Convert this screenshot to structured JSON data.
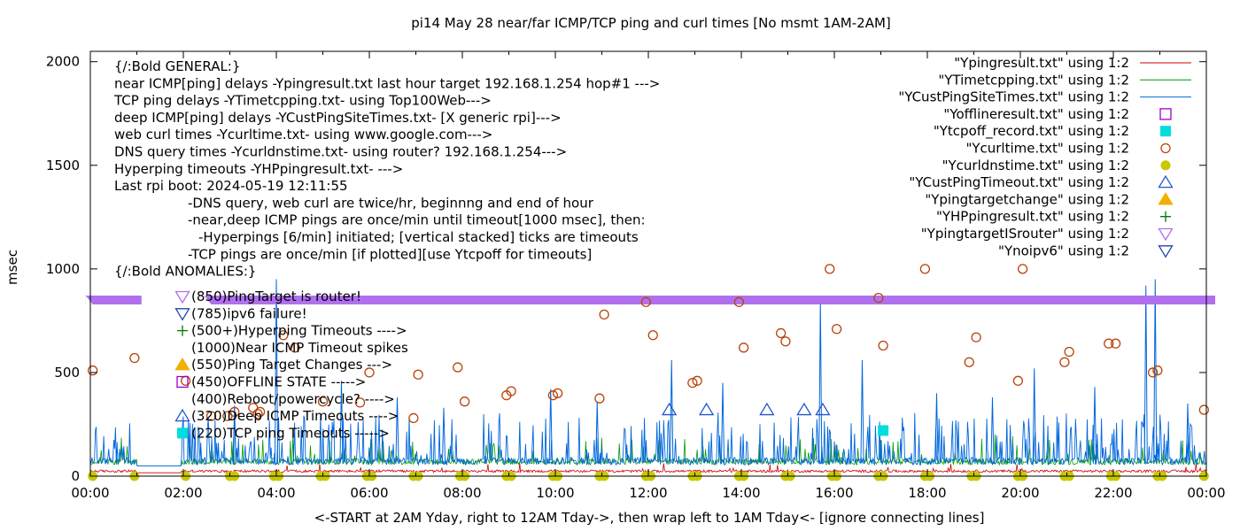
{
  "chart_data": {
    "type": "line",
    "title": "pi14 May 28  near/far ICMP/TCP ping and curl times [No msmt 1AM-2AM]",
    "ylabel": "msec",
    "xlabel": "<-START at 2AM Yday, right to 12AM Tday->, then wrap left to 1AM Tday<- [ignore connecting lines]",
    "xlim": [
      0,
      24
    ],
    "ylim": [
      0,
      2050
    ],
    "x_ticks": [
      "00:00",
      "02:00",
      "04:00",
      "06:00",
      "08:00",
      "10:00",
      "12:00",
      "14:00",
      "16:00",
      "18:00",
      "20:00",
      "22:00",
      "00:00"
    ],
    "y_ticks": [
      0,
      500,
      1000,
      1500,
      2000
    ],
    "grid": false,
    "legend_placement": "top-right",
    "annotations_general": [
      "{/:Bold GENERAL:}",
      "near ICMP[ping] delays -Ypingresult.txt last hour target 192.168.1.254 hop#1 --->",
      "TCP ping delays -YTimetcpping.txt- using Top100Web--->",
      "deep ICMP[ping] delays -YCustPingSiteTimes.txt- [X generic rpi]--->",
      "web curl times -Ycurltime.txt- using www.google.com--->",
      "DNS query times -Ycurldnstime.txt- using router? 192.168.1.254--->",
      "Hyperping timeouts -YHPpingresult.txt- --->",
      "Last rpi boot: 2024-05-19 12:11:55",
      "-DNS query, web curl are twice/hr, beginnng and end of hour",
      "-near,deep ICMP pings are once/min until timeout[1000 msec], then:",
      "-Hyperpings [6/min] initiated; [vertical stacked] ticks are timeouts",
      "-TCP pings are once/min [if plotted][use Ytcpoff for timeouts]",
      "{/:Bold ANOMALIES:}"
    ],
    "annotations_anomalies": [
      {
        "marker": "tri-down-violet",
        "text": "(850)PingTarget is router!"
      },
      {
        "marker": "tri-down-blue",
        "text": "(785)ipv6 failure!"
      },
      {
        "marker": "plus-green",
        "text": "(500+)Hyperping Timeouts ---->"
      },
      {
        "marker": "none",
        "text": "(1000)Near ICMP Timeout spikes"
      },
      {
        "marker": "tri-up-orange",
        "text": "(550)Ping Target Changes --->"
      },
      {
        "marker": "square-open-purple",
        "text": "(450)OFFLINE STATE ----->"
      },
      {
        "marker": "none",
        "text": "(400)Reboot/powercycle? ---->"
      },
      {
        "marker": "tri-up-open-blue",
        "text": "(320)Deep ICMP Timeouts ---->"
      },
      {
        "marker": "square-cyan",
        "text": "(220)TCP ping Timeouts ----->"
      }
    ],
    "legend": [
      {
        "label": "\"Ypingresult.txt\" using 1:2",
        "marker": "line",
        "color": "#cc0000"
      },
      {
        "label": "\"YTimetcpping.txt\" using 1:2",
        "marker": "line",
        "color": "#009900"
      },
      {
        "label": "\"YCustPingSiteTimes.txt\" using 1:2",
        "marker": "line",
        "color": "#0066dd"
      },
      {
        "label": "\"Yofflineresult.txt\" using 1:2",
        "marker": "square-open",
        "color": "#9900cc"
      },
      {
        "label": "\"Ytcpoff_record.txt\" using 1:2",
        "marker": "square-filled",
        "color": "#00dddd"
      },
      {
        "label": "\"Ycurltime.txt\" using 1:2",
        "marker": "circle-open",
        "color": "#b8430a"
      },
      {
        "label": "\"Ycurldnstime.txt\" using 1:2",
        "marker": "circle-filled",
        "color": "#c8c800"
      },
      {
        "label": "\"YCustPingTimeout.txt\" using 1:2",
        "marker": "tri-up-open",
        "color": "#2255cc"
      },
      {
        "label": "\"Ypingtargetchange\" using 1:2",
        "marker": "tri-up-filled",
        "color": "#f0b000"
      },
      {
        "label": "\"YHPpingresult.txt\" using 1:2",
        "marker": "plus",
        "color": "#007700"
      },
      {
        "label": "\"YpingtargetISrouter\" using 1:2",
        "marker": "tri-down-open",
        "color": "#b070ee"
      },
      {
        "label": "\"Ynoipv6\" using 1:2",
        "marker": "tri-down-open",
        "color": "#2244aa"
      }
    ],
    "series": [
      {
        "name": "Ycurltime.txt",
        "points": [
          [
            0.05,
            510
          ],
          [
            0.95,
            570
          ],
          [
            2.05,
            460
          ],
          [
            2.6,
            290
          ],
          [
            2.95,
            290
          ],
          [
            3.1,
            310
          ],
          [
            3.5,
            330
          ],
          [
            3.6,
            300
          ],
          [
            3.65,
            310
          ],
          [
            4.15,
            680
          ],
          [
            4.4,
            620
          ],
          [
            5.0,
            360
          ],
          [
            5.8,
            355
          ],
          [
            6.0,
            500
          ],
          [
            6.95,
            280
          ],
          [
            7.05,
            490
          ],
          [
            7.9,
            525
          ],
          [
            8.05,
            360
          ],
          [
            8.95,
            390
          ],
          [
            9.05,
            410
          ],
          [
            9.95,
            390
          ],
          [
            10.05,
            400
          ],
          [
            10.95,
            375
          ],
          [
            11.05,
            780
          ],
          [
            11.95,
            840
          ],
          [
            12.1,
            680
          ],
          [
            12.95,
            450
          ],
          [
            13.05,
            460
          ],
          [
            13.95,
            840
          ],
          [
            14.05,
            620
          ],
          [
            14.85,
            690
          ],
          [
            14.95,
            650
          ],
          [
            15.9,
            1000
          ],
          [
            16.05,
            710
          ],
          [
            16.95,
            860
          ],
          [
            17.05,
            630
          ],
          [
            17.95,
            1000
          ],
          [
            18.9,
            550
          ],
          [
            19.05,
            670
          ],
          [
            19.95,
            460
          ],
          [
            20.05,
            1000
          ],
          [
            20.95,
            550
          ],
          [
            21.05,
            600
          ],
          [
            21.9,
            640
          ],
          [
            22.05,
            640
          ],
          [
            22.85,
            500
          ],
          [
            22.95,
            510
          ],
          [
            23.95,
            320
          ]
        ]
      },
      {
        "name": "Ycurldnstime.txt",
        "points": [
          [
            0.05,
            0
          ],
          [
            0.95,
            0
          ],
          [
            2.05,
            0
          ],
          [
            3.0,
            0
          ],
          [
            3.1,
            0
          ],
          [
            3.95,
            0
          ],
          [
            4.05,
            0
          ],
          [
            4.95,
            0
          ],
          [
            5.05,
            0
          ],
          [
            5.95,
            0
          ],
          [
            6.05,
            0
          ],
          [
            6.95,
            0
          ],
          [
            7.05,
            0
          ],
          [
            7.95,
            0
          ],
          [
            8.05,
            0
          ],
          [
            8.95,
            0
          ],
          [
            9.05,
            0
          ],
          [
            9.95,
            0
          ],
          [
            10.05,
            0
          ],
          [
            10.95,
            0
          ],
          [
            11.05,
            0
          ],
          [
            11.95,
            0
          ],
          [
            12.05,
            0
          ],
          [
            12.95,
            0
          ],
          [
            13.05,
            0
          ],
          [
            13.95,
            0
          ],
          [
            14.05,
            0
          ],
          [
            14.95,
            0
          ],
          [
            15.05,
            0
          ],
          [
            15.95,
            0
          ],
          [
            16.05,
            0
          ],
          [
            16.95,
            0
          ],
          [
            17.05,
            0
          ],
          [
            17.95,
            0
          ],
          [
            18.05,
            0
          ],
          [
            18.95,
            0
          ],
          [
            19.05,
            0
          ],
          [
            19.95,
            0
          ],
          [
            20.05,
            0
          ],
          [
            20.95,
            0
          ],
          [
            21.05,
            0
          ],
          [
            21.95,
            0
          ],
          [
            22.05,
            0
          ],
          [
            22.95,
            0
          ],
          [
            23.05,
            0
          ],
          [
            23.95,
            0
          ]
        ]
      },
      {
        "name": "YCustPingTimeout.txt",
        "points": [
          [
            12.45,
            320
          ],
          [
            13.25,
            320
          ],
          [
            14.55,
            320
          ],
          [
            15.35,
            320
          ],
          [
            15.75,
            320
          ]
        ]
      },
      {
        "name": "Ytcpoff_record.txt",
        "points": [
          [
            17.05,
            220
          ]
        ]
      },
      {
        "name": "YpingtargetISrouter",
        "ranges": [
          [
            -0.1,
            1.1
          ],
          [
            2.45,
            24.5
          ]
        ],
        "value": 850
      },
      {
        "name": "YCustPingSiteTimes.txt",
        "spikes": [
          [
            4.0,
            950
          ],
          [
            15.7,
            850
          ],
          [
            22.7,
            920
          ],
          [
            22.9,
            950
          ],
          [
            12.5,
            560
          ],
          [
            16.6,
            560
          ],
          [
            20.3,
            520
          ],
          [
            5.4,
            460
          ],
          [
            9.9,
            420
          ],
          [
            13.6,
            450
          ],
          [
            6.6,
            380
          ],
          [
            18.2,
            400
          ],
          [
            21.6,
            430
          ],
          [
            3.1,
            340
          ],
          [
            7.6,
            330
          ],
          [
            10.9,
            360
          ],
          [
            19.4,
            380
          ],
          [
            23.6,
            350
          ]
        ]
      }
    ]
  }
}
